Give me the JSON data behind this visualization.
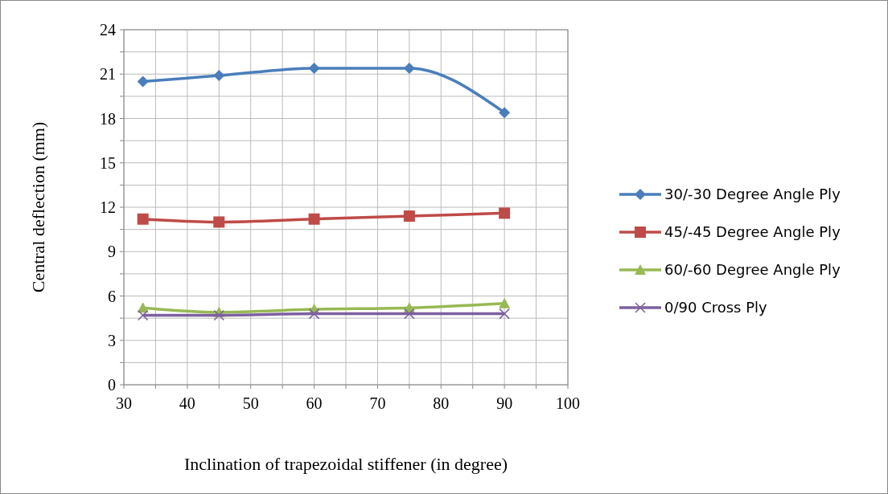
{
  "chart_data": {
    "type": "line",
    "xlabel": "Inclination of trapezoidal stiffener (in degree)",
    "ylabel": "Central deflection (mm)",
    "xlim": [
      30,
      100
    ],
    "xticks": [
      30,
      {
        "value": 35,
        "label": null
      },
      40,
      {
        "value": 45,
        "label": null
      },
      50,
      {
        "value": 55,
        "label": null
      },
      60,
      {
        "value": 65,
        "label": null
      },
      70,
      {
        "value": 75,
        "label": null
      },
      80,
      {
        "value": 85,
        "label": null
      },
      90,
      {
        "value": 95,
        "label": null
      },
      100
    ],
    "ylim": [
      0,
      24
    ],
    "yticks": [
      0,
      {
        "value": 1.5,
        "label": null
      },
      3,
      {
        "value": 4.5,
        "label": null
      },
      6,
      {
        "value": 7.5,
        "label": null
      },
      9,
      {
        "value": 10.5,
        "label": null
      },
      12,
      {
        "value": 13.5,
        "label": null
      },
      15,
      {
        "value": 16.5,
        "label": null
      },
      18,
      {
        "value": 19.5,
        "label": null
      },
      21,
      {
        "value": 22.5,
        "label": null
      },
      24
    ],
    "grid": true,
    "legend": "right",
    "line_style": "solid",
    "x": [
      33,
      45,
      60,
      75,
      90
    ],
    "series": [
      {
        "name": "30/-30 Degree Angle Ply",
        "color": "#4a7ebb",
        "marker": "diamond",
        "values": [
          20.5,
          20.9,
          21.4,
          21.4,
          18.4
        ]
      },
      {
        "name": "45/-45 Degree Angle Ply",
        "color": "#be4b48",
        "marker": "square",
        "values": [
          11.2,
          11.0,
          11.2,
          11.4,
          11.6
        ]
      },
      {
        "name": "60/-60 Degree Angle Ply",
        "color": "#98b954",
        "marker": "triangle",
        "values": [
          5.2,
          4.9,
          5.1,
          5.2,
          5.5
        ]
      },
      {
        "name": "0/90 Cross Ply",
        "color": "#7d60a0",
        "marker": "cross",
        "values": [
          4.7,
          4.7,
          4.8,
          4.8,
          4.8
        ]
      }
    ]
  }
}
